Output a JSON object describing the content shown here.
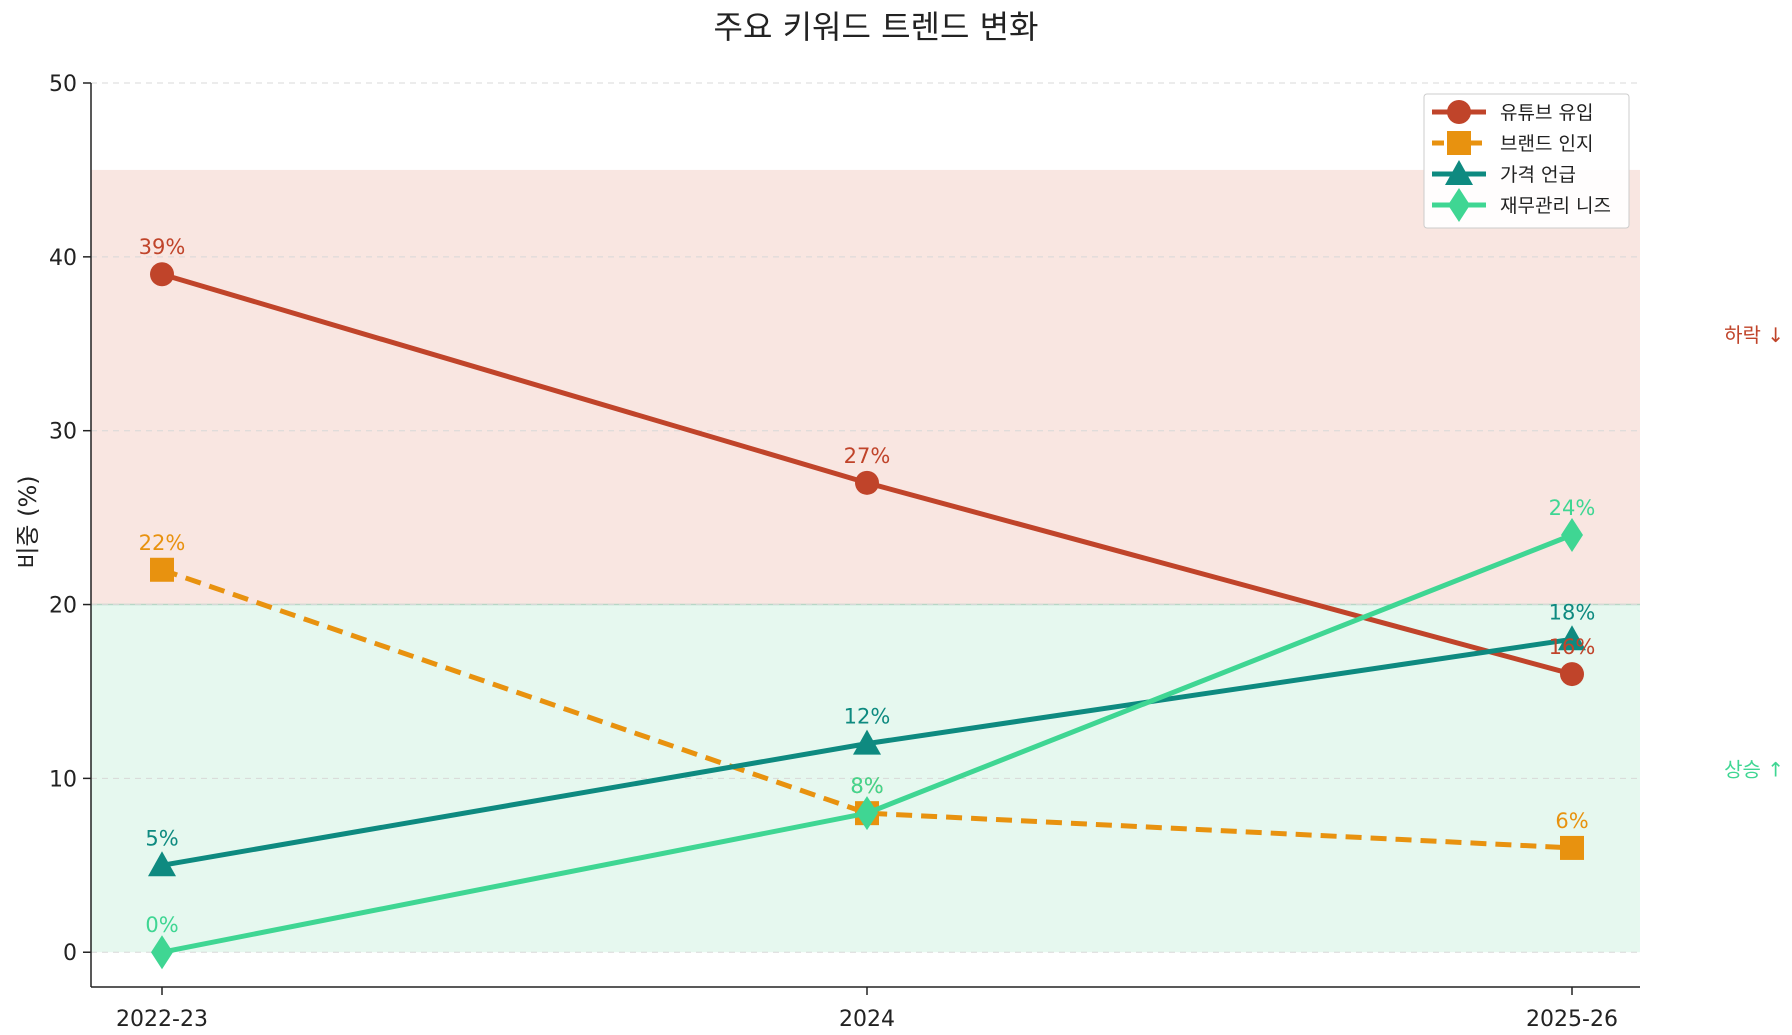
{
  "chart_data": {
    "type": "line",
    "title": "주요 키워드 트렌드 변화",
    "xlabel": "",
    "ylabel": "비중 (%)",
    "categories": [
      "2022-23",
      "2024",
      "2025-26"
    ],
    "ylim": [
      -2,
      50
    ],
    "yticks": [
      0,
      10,
      20,
      30,
      40,
      50
    ],
    "grid": "horizontal dashed",
    "legend_position": "top-right",
    "series": [
      {
        "name": "유튜브 유입",
        "values": [
          39,
          27,
          16
        ],
        "labels": [
          "39%",
          "27%",
          "16%"
        ],
        "color": "#c0442a",
        "marker": "circle",
        "dash": "solid"
      },
      {
        "name": "브랜드 인지",
        "values": [
          22,
          8,
          6
        ],
        "labels": [
          "22%",
          "8%",
          "6%"
        ],
        "color": "#e8920f",
        "marker": "square",
        "dash": "dashed"
      },
      {
        "name": "가격 언급",
        "values": [
          5,
          12,
          18
        ],
        "labels": [
          "5%",
          "12%",
          "18%"
        ],
        "color": "#0e8a80",
        "marker": "triangle",
        "dash": "solid"
      },
      {
        "name": "재무관리 니즈",
        "values": [
          0,
          8,
          24
        ],
        "labels": [
          "0%",
          "8%",
          "24%"
        ],
        "color": "#3fd693",
        "marker": "diamond",
        "dash": "solid"
      }
    ],
    "bands": [
      {
        "from": 20,
        "to": 45,
        "color": "#f9e6e1",
        "label": "하락 ↓",
        "label_color": "#c0442a",
        "label_value": 35.5
      },
      {
        "from": 0,
        "to": 20,
        "color": "#e6f8ef",
        "label": "상승 ↑",
        "label_color": "#3fd693",
        "label_value": 10.5
      }
    ]
  }
}
